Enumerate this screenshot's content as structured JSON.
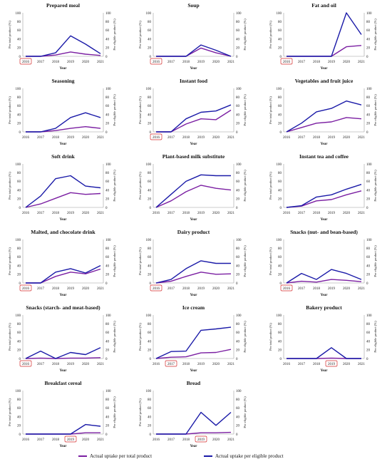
{
  "colors": {
    "total": "#7b1fa2",
    "eligible": "#1a1aa8",
    "highlight_box": "#d32f2f",
    "axis": "#9e9e9e"
  },
  "legend": {
    "total_label": "Actual uptake per total product",
    "eligible_label": "Actual uptake per eligible product"
  },
  "chart_data": [
    {
      "type": "line",
      "title": "Prepared meal",
      "xlabel": "Year",
      "ylabel_left": "Per total product (%)",
      "ylabel_right": "Per eligible product (%)",
      "x": [
        "2016",
        "2017",
        "2018",
        "2019",
        "2020",
        "2021"
      ],
      "ylim": [
        0,
        100
      ],
      "yticks": [
        0,
        20,
        40,
        60,
        80,
        100
      ],
      "highlight_year": "2016",
      "series": [
        {
          "name": "Actual uptake per total product",
          "values": [
            0,
            0,
            3,
            10,
            5,
            2
          ]
        },
        {
          "name": "Actual uptake per eligible product",
          "values": [
            0,
            0,
            8,
            47,
            28,
            6
          ]
        }
      ]
    },
    {
      "type": "line",
      "title": "Soup",
      "xlabel": "Year",
      "ylabel_left": "Per total product (%)",
      "ylabel_right": "Per eligible product (%)",
      "x": [
        "2016",
        "2017",
        "2018",
        "2019",
        "2020",
        "2021"
      ],
      "ylim": [
        0,
        100
      ],
      "yticks": [
        0,
        20,
        40,
        60,
        80,
        100
      ],
      "highlight_year": "2016",
      "series": [
        {
          "name": "Actual uptake per total product",
          "values": [
            0,
            0,
            0,
            19,
            8,
            0
          ]
        },
        {
          "name": "Actual uptake per eligible product",
          "values": [
            0,
            0,
            0,
            26,
            14,
            0
          ]
        }
      ]
    },
    {
      "type": "line",
      "title": "Fat and oil",
      "xlabel": "Year",
      "ylabel_left": "Per total product (%)",
      "ylabel_right": "Per eligible product (%)",
      "x": [
        "2016",
        "2017",
        "2018",
        "2019",
        "2020",
        "2021"
      ],
      "ylim": [
        0,
        100
      ],
      "yticks": [
        0,
        20,
        40,
        60,
        80,
        100
      ],
      "highlight_year": "2016",
      "series": [
        {
          "name": "Actual uptake per total product",
          "values": [
            0,
            0,
            0,
            0,
            22,
            25
          ]
        },
        {
          "name": "Actual uptake per eligible product",
          "values": [
            0,
            0,
            0,
            0,
            100,
            50
          ]
        }
      ]
    },
    {
      "type": "line",
      "title": "Seasoning",
      "xlabel": "Year",
      "ylabel_left": "Per total product (%)",
      "ylabel_right": "Per eligible product (%)",
      "x": [
        "2016",
        "2017",
        "2018",
        "2019",
        "2020",
        "2021"
      ],
      "ylim": [
        0,
        100
      ],
      "yticks": [
        0,
        20,
        40,
        60,
        80,
        100
      ],
      "highlight_year": "",
      "series": [
        {
          "name": "Actual uptake per total product",
          "values": [
            0,
            0,
            3,
            8,
            12,
            8
          ]
        },
        {
          "name": "Actual uptake per eligible product",
          "values": [
            0,
            0,
            8,
            33,
            44,
            33
          ]
        }
      ]
    },
    {
      "type": "line",
      "title": "Instant food",
      "xlabel": "Year",
      "ylabel_left": "Per total product (%)",
      "ylabel_right": "Per eligible product (%)",
      "x": [
        "2016",
        "2017",
        "2018",
        "2019",
        "2020",
        "2021"
      ],
      "ylim": [
        0,
        100
      ],
      "yticks": [
        0,
        20,
        40,
        60,
        80,
        100
      ],
      "highlight_year": "2016",
      "series": [
        {
          "name": "Actual uptake per total product",
          "values": [
            0,
            0,
            18,
            30,
            28,
            50
          ]
        },
        {
          "name": "Actual uptake per eligible product",
          "values": [
            0,
            0,
            30,
            45,
            48,
            62
          ]
        }
      ]
    },
    {
      "type": "line",
      "title": "Vegetables and fruit juice",
      "xlabel": "Year",
      "ylabel_left": "Per total product (%)",
      "ylabel_right": "Per eligible product (%)",
      "x": [
        "2016",
        "2017",
        "2018",
        "2019",
        "2020",
        "2021"
      ],
      "ylim": [
        0,
        100
      ],
      "yticks": [
        0,
        20,
        40,
        60,
        80,
        100
      ],
      "highlight_year": "",
      "series": [
        {
          "name": "Actual uptake per total product",
          "values": [
            0,
            10,
            20,
            23,
            33,
            30
          ]
        },
        {
          "name": "Actual uptake per eligible product",
          "values": [
            0,
            20,
            46,
            54,
            71,
            62
          ]
        }
      ]
    },
    {
      "type": "line",
      "title": "Soft drink",
      "xlabel": "Year",
      "ylabel_left": "Per total product (%)",
      "ylabel_right": "Per eligible product (%)",
      "x": [
        "2016",
        "2017",
        "2018",
        "2019",
        "2020",
        "2021"
      ],
      "ylim": [
        0,
        100
      ],
      "yticks": [
        0,
        20,
        40,
        60,
        80,
        100
      ],
      "highlight_year": "",
      "series": [
        {
          "name": "Actual uptake per total product",
          "values": [
            0,
            8,
            21,
            34,
            30,
            32
          ]
        },
        {
          "name": "Actual uptake per eligible product",
          "values": [
            0,
            26,
            66,
            73,
            49,
            45
          ]
        }
      ]
    },
    {
      "type": "line",
      "title": "Plant-based milk substitute",
      "xlabel": "Year",
      "ylabel_left": "Per total product (%)",
      "ylabel_right": "Per eligible product (%)",
      "x": [
        "2016",
        "2017",
        "2018",
        "2019",
        "2020",
        "2021"
      ],
      "ylim": [
        0,
        100
      ],
      "yticks": [
        0,
        20,
        40,
        60,
        80,
        100
      ],
      "highlight_year": "",
      "series": [
        {
          "name": "Actual uptake per total product",
          "values": [
            0,
            15,
            36,
            51,
            44,
            40
          ]
        },
        {
          "name": "Actual uptake per eligible product",
          "values": [
            0,
            30,
            60,
            75,
            73,
            73
          ]
        }
      ]
    },
    {
      "type": "line",
      "title": "Instant tea and coffee",
      "xlabel": "Year",
      "ylabel_left": "Per total product (%)",
      "ylabel_right": "Per eligible product (%)",
      "x": [
        "2016",
        "2017",
        "2018",
        "2019",
        "2020",
        "2021"
      ],
      "ylim": [
        0,
        100
      ],
      "yticks": [
        0,
        20,
        40,
        60,
        80,
        100
      ],
      "highlight_year": "",
      "series": [
        {
          "name": "Actual uptake per total product",
          "values": [
            0,
            3,
            15,
            18,
            29,
            38
          ]
        },
        {
          "name": "Actual uptake per eligible product",
          "values": [
            0,
            4,
            24,
            29,
            42,
            53
          ]
        }
      ]
    },
    {
      "type": "line",
      "title": "Malted, and chocolate drink",
      "xlabel": "Year",
      "ylabel_left": "Per total product (%)",
      "ylabel_right": "Per eligible product (%)",
      "x": [
        "2016",
        "2017",
        "2018",
        "2019",
        "2020",
        "2021"
      ],
      "ylim": [
        0,
        100
      ],
      "yticks": [
        0,
        20,
        40,
        60,
        80,
        100
      ],
      "highlight_year": "2016",
      "series": [
        {
          "name": "Actual uptake per total product",
          "values": [
            0,
            0,
            15,
            25,
            21,
            32
          ]
        },
        {
          "name": "Actual uptake per eligible product",
          "values": [
            0,
            0,
            25,
            33,
            23,
            40
          ]
        }
      ]
    },
    {
      "type": "line",
      "title": "Dairy product",
      "xlabel": "Year",
      "ylabel_left": "Per total product (%)",
      "ylabel_right": "Per eligible product (%)",
      "x": [
        "2016",
        "2017",
        "2018",
        "2019",
        "2020",
        "2021"
      ],
      "ylim": [
        0,
        100
      ],
      "yticks": [
        0,
        20,
        40,
        60,
        80,
        100
      ],
      "highlight_year": "2016",
      "series": [
        {
          "name": "Actual uptake per total product",
          "values": [
            0,
            4,
            15,
            25,
            20,
            21
          ]
        },
        {
          "name": "Actual uptake per eligible product",
          "values": [
            0,
            8,
            33,
            51,
            45,
            45
          ]
        }
      ]
    },
    {
      "type": "line",
      "title": "Snacks (nut- and bean-based)",
      "xlabel": "Year",
      "ylabel_left": "Per total product (%)",
      "ylabel_right": "Per eligible product (%)",
      "x": [
        "2016",
        "2017",
        "2018",
        "2019",
        "2020",
        "2021"
      ],
      "ylim": [
        0,
        100
      ],
      "yticks": [
        0,
        20,
        40,
        60,
        80,
        100
      ],
      "highlight_year": "2016",
      "series": [
        {
          "name": "Actual uptake per total product",
          "values": [
            0,
            4,
            2,
            8,
            6,
            3
          ]
        },
        {
          "name": "Actual uptake per eligible product",
          "values": [
            0,
            22,
            8,
            31,
            22,
            8
          ]
        }
      ]
    },
    {
      "type": "line",
      "title": "Snacks (starch- and meat-based)",
      "xlabel": "Year",
      "ylabel_left": "Per total product (%)",
      "ylabel_right": "Per eligible product (%)",
      "x": [
        "2016",
        "2017",
        "2018",
        "2019",
        "2020",
        "2021"
      ],
      "ylim": [
        0,
        100
      ],
      "yticks": [
        0,
        20,
        40,
        60,
        80,
        100
      ],
      "highlight_year": "2016",
      "series": [
        {
          "name": "Actual uptake per total product",
          "values": [
            0,
            1,
            0,
            1,
            1,
            2
          ]
        },
        {
          "name": "Actual uptake per eligible product",
          "values": [
            0,
            17,
            0,
            14,
            9,
            25
          ]
        }
      ]
    },
    {
      "type": "line",
      "title": "Ice cream",
      "xlabel": "Year",
      "ylabel_left": "Per total product (%)",
      "ylabel_right": "Per eligible product (%)",
      "x": [
        "2016",
        "2017",
        "2018",
        "2019",
        "2020",
        "2021"
      ],
      "ylim": [
        0,
        100
      ],
      "yticks": [
        0,
        20,
        40,
        60,
        80,
        100
      ],
      "highlight_year": "2017",
      "series": [
        {
          "name": "Actual uptake per total product",
          "values": [
            0,
            3,
            4,
            13,
            14,
            21
          ]
        },
        {
          "name": "Actual uptake per eligible product",
          "values": [
            0,
            16,
            17,
            65,
            68,
            72
          ]
        }
      ]
    },
    {
      "type": "line",
      "title": "Bakery product",
      "xlabel": "Year",
      "ylabel_left": "Per total product (%)",
      "ylabel_right": "Per eligible product (%)",
      "x": [
        "2016",
        "2017",
        "2018",
        "2019",
        "2020",
        "2021"
      ],
      "ylim": [
        0,
        100
      ],
      "yticks": [
        0,
        20,
        40,
        60,
        80,
        100
      ],
      "highlight_year": "2019",
      "series": [
        {
          "name": "Actual uptake per total product",
          "values": [
            0,
            0,
            0,
            1,
            0,
            0
          ]
        },
        {
          "name": "Actual uptake per eligible product",
          "values": [
            0,
            0,
            0,
            25,
            0,
            0
          ]
        }
      ]
    },
    {
      "type": "line",
      "title": "Breakfast cereal",
      "xlabel": "Year",
      "ylabel_left": "Per total product (%)",
      "ylabel_right": "Per eligible product (%)",
      "x": [
        "2016",
        "2017",
        "2018",
        "2019",
        "2020",
        "2021"
      ],
      "ylim": [
        0,
        100
      ],
      "yticks": [
        0,
        20,
        40,
        60,
        80,
        100
      ],
      "highlight_year": "2019",
      "series": [
        {
          "name": "Actual uptake per total product",
          "values": [
            0,
            0,
            0,
            0,
            3,
            3
          ]
        },
        {
          "name": "Actual uptake per eligible product",
          "values": [
            0,
            0,
            0,
            0,
            22,
            18
          ]
        }
      ]
    },
    {
      "type": "line",
      "title": "Bread",
      "xlabel": "Year",
      "ylabel_left": "Per total product (%)",
      "ylabel_right": "Per eligible product (%)",
      "x": [
        "2016",
        "2017",
        "2018",
        "2019",
        "2020",
        "2021"
      ],
      "ylim": [
        0,
        100
      ],
      "yticks": [
        0,
        20,
        40,
        60,
        80,
        100
      ],
      "highlight_year": "2019",
      "series": [
        {
          "name": "Actual uptake per total product",
          "values": [
            0,
            0,
            0,
            3,
            3,
            4
          ]
        },
        {
          "name": "Actual uptake per eligible product",
          "values": [
            0,
            0,
            0,
            50,
            20,
            50
          ]
        }
      ]
    }
  ]
}
